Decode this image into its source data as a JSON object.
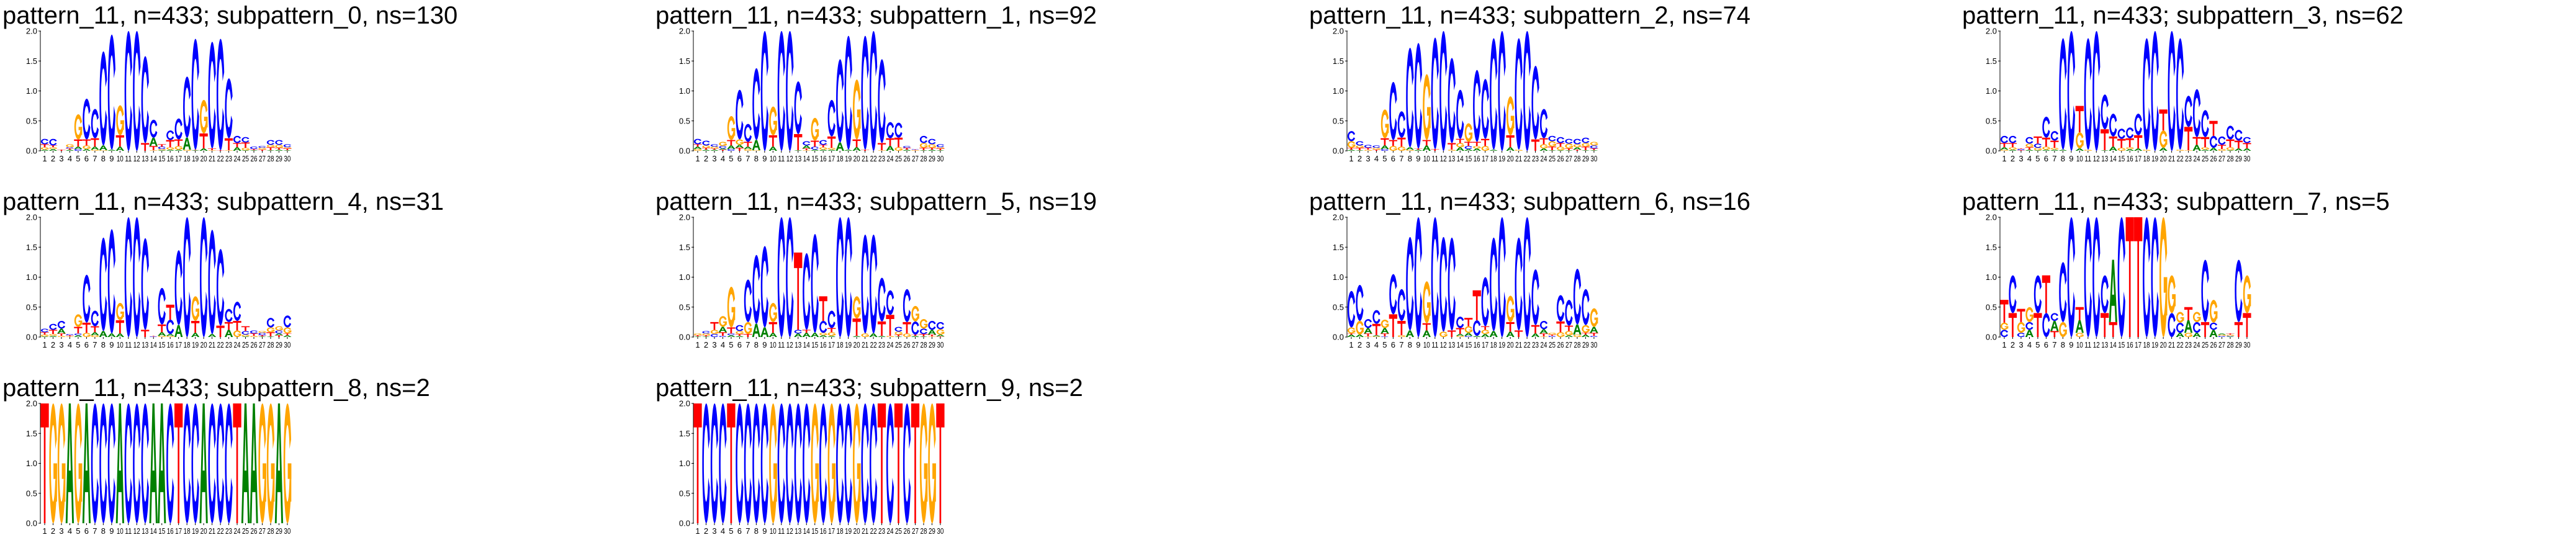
{
  "colors": {
    "A": "#008000",
    "C": "#0000ff",
    "G": "#ffa500",
    "T": "#ff0000"
  },
  "axis": {
    "yticks": [
      "0.0",
      "0.5",
      "1.0",
      "1.5",
      "2.0"
    ],
    "xticks": [
      "1",
      "2",
      "3",
      "4",
      "5",
      "6",
      "7",
      "8",
      "9",
      "10",
      "11",
      "12",
      "13",
      "14",
      "15",
      "16",
      "17",
      "18",
      "19",
      "20",
      "21",
      "22",
      "23",
      "24",
      "25",
      "26",
      "27",
      "28",
      "29",
      "30"
    ]
  },
  "chart_data": [
    {
      "type": "sequence-logo",
      "title": "pattern_11, n=433; subpattern_0, ns=130",
      "ylim": [
        0,
        2
      ],
      "stacks": [
        "A.02G.04T.05C.09",
        "A.03G.03T.03C.11",
        "T.02",
        "A.02T.02C.02G.05",
        "C.03A.04T.12G.42",
        "A.03G.06T.10C.68",
        "G.02A.05T.14C.49",
        "G.01A.08C1.57",
        "A.02C1.92",
        "A.07T.19G.50",
        "C2.0",
        "C2.0",
        "T.13C1.45",
        "G.01T.07A.14C.30",
        "A.01G.02C.04T.04",
        "A.02G.04T.12C.16",
        "A.02G.06T.11C.35",
        "G.02A.20C1.02",
        "A.01T.01C1.85",
        "A.04T.25G.56",
        "G.01T.03C1.78",
        "T.01C1.86",
        "G.01T.20C1.0",
        "A.06T.07C.12",
        "A.01G.04T.09C.09",
        "A.01T.02C.04",
        "T.02G.03C.03",
        "A.01T.05G.04C.08",
        "A.02T.03G.05C.08",
        "A.01T.03G.02C.05"
      ]
    },
    {
      "type": "sequence-logo",
      "title": "pattern_11, n=433; subpattern_1, ns=92",
      "ylim": [
        0,
        2
      ],
      "stacks": [
        "G.03A.04T.04C.09",
        "A.02T.03G.04C.08",
        "A.02T.02G.03C.04",
        "T.02A.02C.04G.07",
        "C.03A.06T.09G.40",
        "T.05A.05G.09C.83",
        "G.03A.04T.08C.30",
        "G.01A.17C1.2",
        "C2.0",
        "A.07T.19G.48",
        "C2.0",
        "C2.0",
        "A.01T.27C.88",
        "G.01T.03A.05C.07",
        "A.02C.05T.10G.38",
        "A.02G.04T.04C.08",
        "A.02G.03T.19C.61",
        "A.14C1.39",
        "A.02C1.9",
        "A.06T.13G1.0",
        "T.02C1.9",
        "C2.0",
        "G.01T.12C1.4",
        "A.08T.13C.27",
        "G.06T.16C.25",
        "A.02T.03C.03",
        "G.01T.01C.01",
        "A.01T.04G.08C.12",
        "A.02T.03G.06C.09",
        "A.01T.03G.02C.05"
      ]
    },
    {
      "type": "sequence-logo",
      "title": "pattern_11, n=433; subpattern_2, ns=74",
      "ylim": [
        0,
        2
      ],
      "stacks": [
        "A.02T.03G.11C.17",
        "A.01T.04G.04C.07",
        "G.02T.03C.05",
        "T.02G.03C.04",
        "C.03A.06T.12G.48",
        "G.08T.10C.97",
        "G.07T.15C.44",
        "G.02A.04C1.66",
        "A.02T.02C1.76",
        "A.09T.09G1.1",
        "T.03C1.86",
        "C2.0",
        "G.02T.11C1.42",
        "A.06G.07T.07C.82",
        "A.03C.05T.07G.31",
        "A.04G.04T.07C1.2",
        "G.08T.12C1.0",
        "A.02C1.86",
        "C2.0",
        "A.06T.20G.65",
        "G.02C1.86",
        "C2.0",
        "T.19C1.23",
        "A.04G.07T.10C.49",
        "A.01T.06G.09C.09",
        "A.01G.06T.06C.10",
        "A.01T.03G.08C.08",
        "T.02A.04G.05C.09",
        "A.01T.06G.06C.09",
        "A.01T.03C.05G.06"
      ]
    },
    {
      "type": "sequence-logo",
      "title": "pattern_11, n=433; subpattern_3, ns=62",
      "ylim": [
        0,
        2
      ],
      "stacks": [
        "G.02A.04T.07C.12",
        "A.02G.04T.07C.12",
        "T.01C.02T.01",
        "A.02T.04G.06C.11",
        "A.01G.04C.07T.12",
        "A.02G.05T.15C.35",
        "A.02G.03T.12C.16",
        "A.02C1.86",
        "C2.0",
        "A.04G.27T.44",
        "G.02C1.86",
        "C2.0",
        "A.01T.35C.58",
        "A.07T.17C.38",
        "G.05T.15C.17",
        "A.03G.03T.15C.18",
        "A.04T.22C.36",
        "G.02C1.86",
        "C2.0",
        "A.05G.29T.35",
        "C2.0",
        "G.02C1.86",
        "G.01T.39C.52",
        "A.10T.13C.80",
        "A.02G.04T.17C.45",
        "A.05C.20T.25",
        "G.03T.07C.14",
        "A.01G.05T.13C.23",
        "A.04T.13C.18",
        "A.04T.09C.10"
      ]
    },
    {
      "type": "sequence-logo",
      "title": "pattern_11, n=433; subpattern_4, ns=31",
      "ylim": [
        0,
        2
      ],
      "stacks": [
        "A.01G.03T.04C.06",
        "A.02G.03T.07C.10",
        "G.02T.04A.08C.13",
        "G.01T.02C.02",
        "A.03C.03T.11G.21",
        "G.07T.17C.80",
        "G.03A.05T.10C.26",
        "A.10C1.56",
        "A.06C1.74",
        "A.06T.22G.29",
        "C2.0",
        "C2.0",
        "T.12C1.53",
        "C.01T.01",
        "G.02A.06T.13C.61",
        "G.02A.03C.24T.25",
        "A.20C1.25",
        "C2.0",
        "A.07T.20G.41",
        "C2.0",
        "A.05C1.74",
        "T.19C1.28",
        "A.12T.13C.22",
        "G.11T.16C.32",
        "A.01G.03C.06T.08",
        "G.02T.04C.05",
        "A.01T.02C.04G.03",
        "A.01T.07G.08C.16",
        "T.03A.03C.05G.07",
        "A.03T.03G.10C.20"
      ]
    },
    {
      "type": "sequence-logo",
      "title": "pattern_11, n=433; subpattern_5, ns=19",
      "ylim": [
        0,
        2
      ],
      "stacks": [
        "A.01T.02G.03",
        "A.01T.02G.03C.04",
        "C.05G.07T.13",
        "C.02T.06A.09G.18",
        "A.03C.03T.10G.68",
        "A.02T.03G.05C.10",
        "T.05G.20C.71",
        "A.22C1.15",
        "A.16C1.36",
        "A.07T.18G.32",
        "C2.0",
        "C2.0",
        "A.06C.06T1.29",
        "A.07T.05C1.28",
        "A.07C1.65",
        "A.03G.04C.20T.41",
        "A.02G.06T.07C.29",
        "C2.0",
        "C2.0",
        "A.02T.29G.37",
        "G.06C1.65",
        "A.06C1.65",
        "A.02T.24C.73",
        "G.02T.35C.41",
        "A.01T.03G.05C.08",
        "G.06T.19C.55",
        "A.02T.02C.22G.26",
        "A.01T.04C.09G.16",
        "G.01T.03A.08C.15",
        "T.01A.03G.09C.12"
      ]
    },
    {
      "type": "sequence-logo",
      "title": "pattern_11, n=433; subpattern_6, ns=16",
      "ylim": [
        0,
        2
      ],
      "stacks": [
        "A.04T.02G.10C.61",
        "A.04G.23C.60",
        "G.01T.05A.09C.15",
        "G.01A.02T.19C.23",
        "C.01T.05A.09G.14",
        "T.38C.67",
        "G.03T.24C.53",
        "A.11C1.56",
        "C2.0",
        "A.11T.12G.70",
        "C2.0",
        "G.09C1.58",
        "T.11C1.55",
        "G.02A.03T.10C.19",
        "C.02A.05G.11T.14",
        "A.02C.26T.50",
        "A.05G.07T.06C.82",
        "A.10C1.56",
        "C2.0",
        "A.09T.16G.44",
        "T.11C1.55",
        "C2.0",
        "A.06T.14C.93",
        "G.01T.05A.07C.14",
        "C.02T.02G.03",
        "G.08T.18C.44",
        "A.03G.07T.09C.43",
        "G.04A.17C.93",
        "A.04T.03G.13C.60",
        "C.02T.05A.10G.31"
      ]
    },
    {
      "type": "sequence-logo",
      "title": "pattern_11, n=433; subpattern_7, ns=5",
      "ylim": [
        0,
        2
      ],
      "stacks": [
        "C.12G.12T.38",
        "T.40C.63",
        "C.07G.18T.22",
        "A.12C.13G.25",
        "T.40C.63",
        "C.40T.63",
        "T.10A.17C.13",
        "G.25C1.0",
        "C2.0",
        "G.07A.21T.22",
        "C2.0",
        "C2.0",
        "T.40C.63",
        "T.25A1.04",
        "C2.0",
        "T2.0",
        "T2.0",
        "C2.0",
        "C2.0",
        "G2.0",
        "C.40G.63",
        "A.07C.17G.18",
        "G.07A.21T.22",
        "A.07C.18G.17",
        "T.25C1.04",
        "A.12C.12G.38",
        "C.02G.02A.02",
        "A.01C.01G.02T.02",
        "T.25C1.04",
        "T.40G.63"
      ]
    },
    {
      "type": "sequence-logo",
      "title": "pattern_11, n=433; subpattern_8, ns=2",
      "ylim": [
        0,
        2
      ],
      "stacks": [
        "T2",
        "G2",
        "G2",
        "A2",
        "G2",
        "A2",
        "C2",
        "C2",
        "C2",
        "A2",
        "C2",
        "C2",
        "C2",
        "A2",
        "A2",
        "C2",
        "T2",
        "C2",
        "C2",
        "A2",
        "C2",
        "C2",
        "C2",
        "T2",
        "A2",
        "A2",
        "G2",
        "G2",
        "A2",
        "G2"
      ]
    },
    {
      "type": "sequence-logo",
      "title": "pattern_11, n=433; subpattern_9, ns=2",
      "ylim": [
        0,
        2
      ],
      "stacks": [
        "T2",
        "C2",
        "C2",
        "C2",
        "T2",
        "C2",
        "C2",
        "C2",
        "C2",
        "G2",
        "C2",
        "C2",
        "C2",
        "C2",
        "G2",
        "C2",
        "G2",
        "C2",
        "C2",
        "G2",
        "C2",
        "C2",
        "T2",
        "C2",
        "T2",
        "C2",
        "T2",
        "G2",
        "G2",
        "T2"
      ]
    }
  ]
}
